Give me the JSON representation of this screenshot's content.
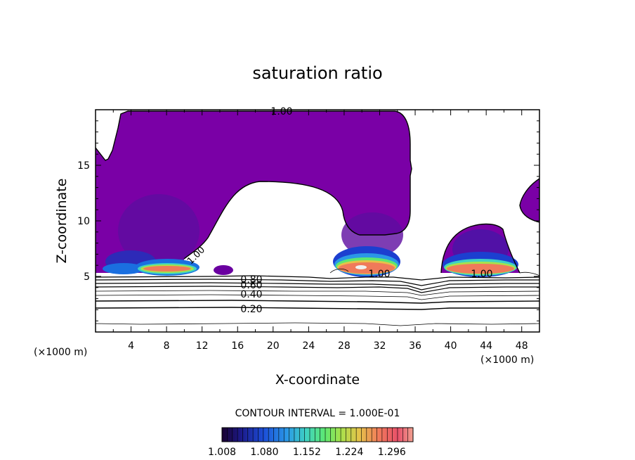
{
  "chart_data": {
    "type": "heatmap",
    "title": "saturation ratio",
    "xlabel": "X-coordinate",
    "ylabel": "Z-coordinate",
    "x_unit": "(×1000 m)",
    "z_unit": "(×1000 m)",
    "xlim": [
      0,
      50
    ],
    "ylim": [
      0,
      20
    ],
    "x_ticks": [
      4,
      8,
      12,
      16,
      20,
      24,
      28,
      32,
      36,
      40,
      44,
      48
    ],
    "y_ticks": [
      5,
      10,
      15
    ],
    "contour_interval_text": "CONTOUR INTERVAL = 1.000E-01",
    "colorbar": {
      "range": [
        1.008,
        1.332
      ],
      "tick_labels": [
        "1.008",
        "1.080",
        "1.152",
        "1.224",
        "1.296"
      ],
      "colors": [
        "#1a0030",
        "#1c1a8a",
        "#1c4fd8",
        "#2a98e6",
        "#3fd2c2",
        "#5ee870",
        "#a6e24c",
        "#e6c24a",
        "#f07a5a",
        "#e8506a",
        "#f0a090"
      ]
    },
    "contour_labels": [
      {
        "text": "1.00",
        "x": 21.0,
        "z": 19.9
      },
      {
        "text": "1.00",
        "x": 11.2,
        "z": 7.2
      },
      {
        "text": "1.00",
        "x": 32.0,
        "z": 5.1
      },
      {
        "text": "1.00",
        "x": 43.0,
        "z": 5.1
      },
      {
        "text": "0.80",
        "x": 17.5,
        "z": 4.8
      },
      {
        "text": "0.60",
        "x": 17.5,
        "z": 4.3
      },
      {
        "text": "0.40",
        "x": 17.5,
        "z": 3.5
      },
      {
        "text": "0.20",
        "x": 17.5,
        "z": 2.1
      }
    ]
  }
}
